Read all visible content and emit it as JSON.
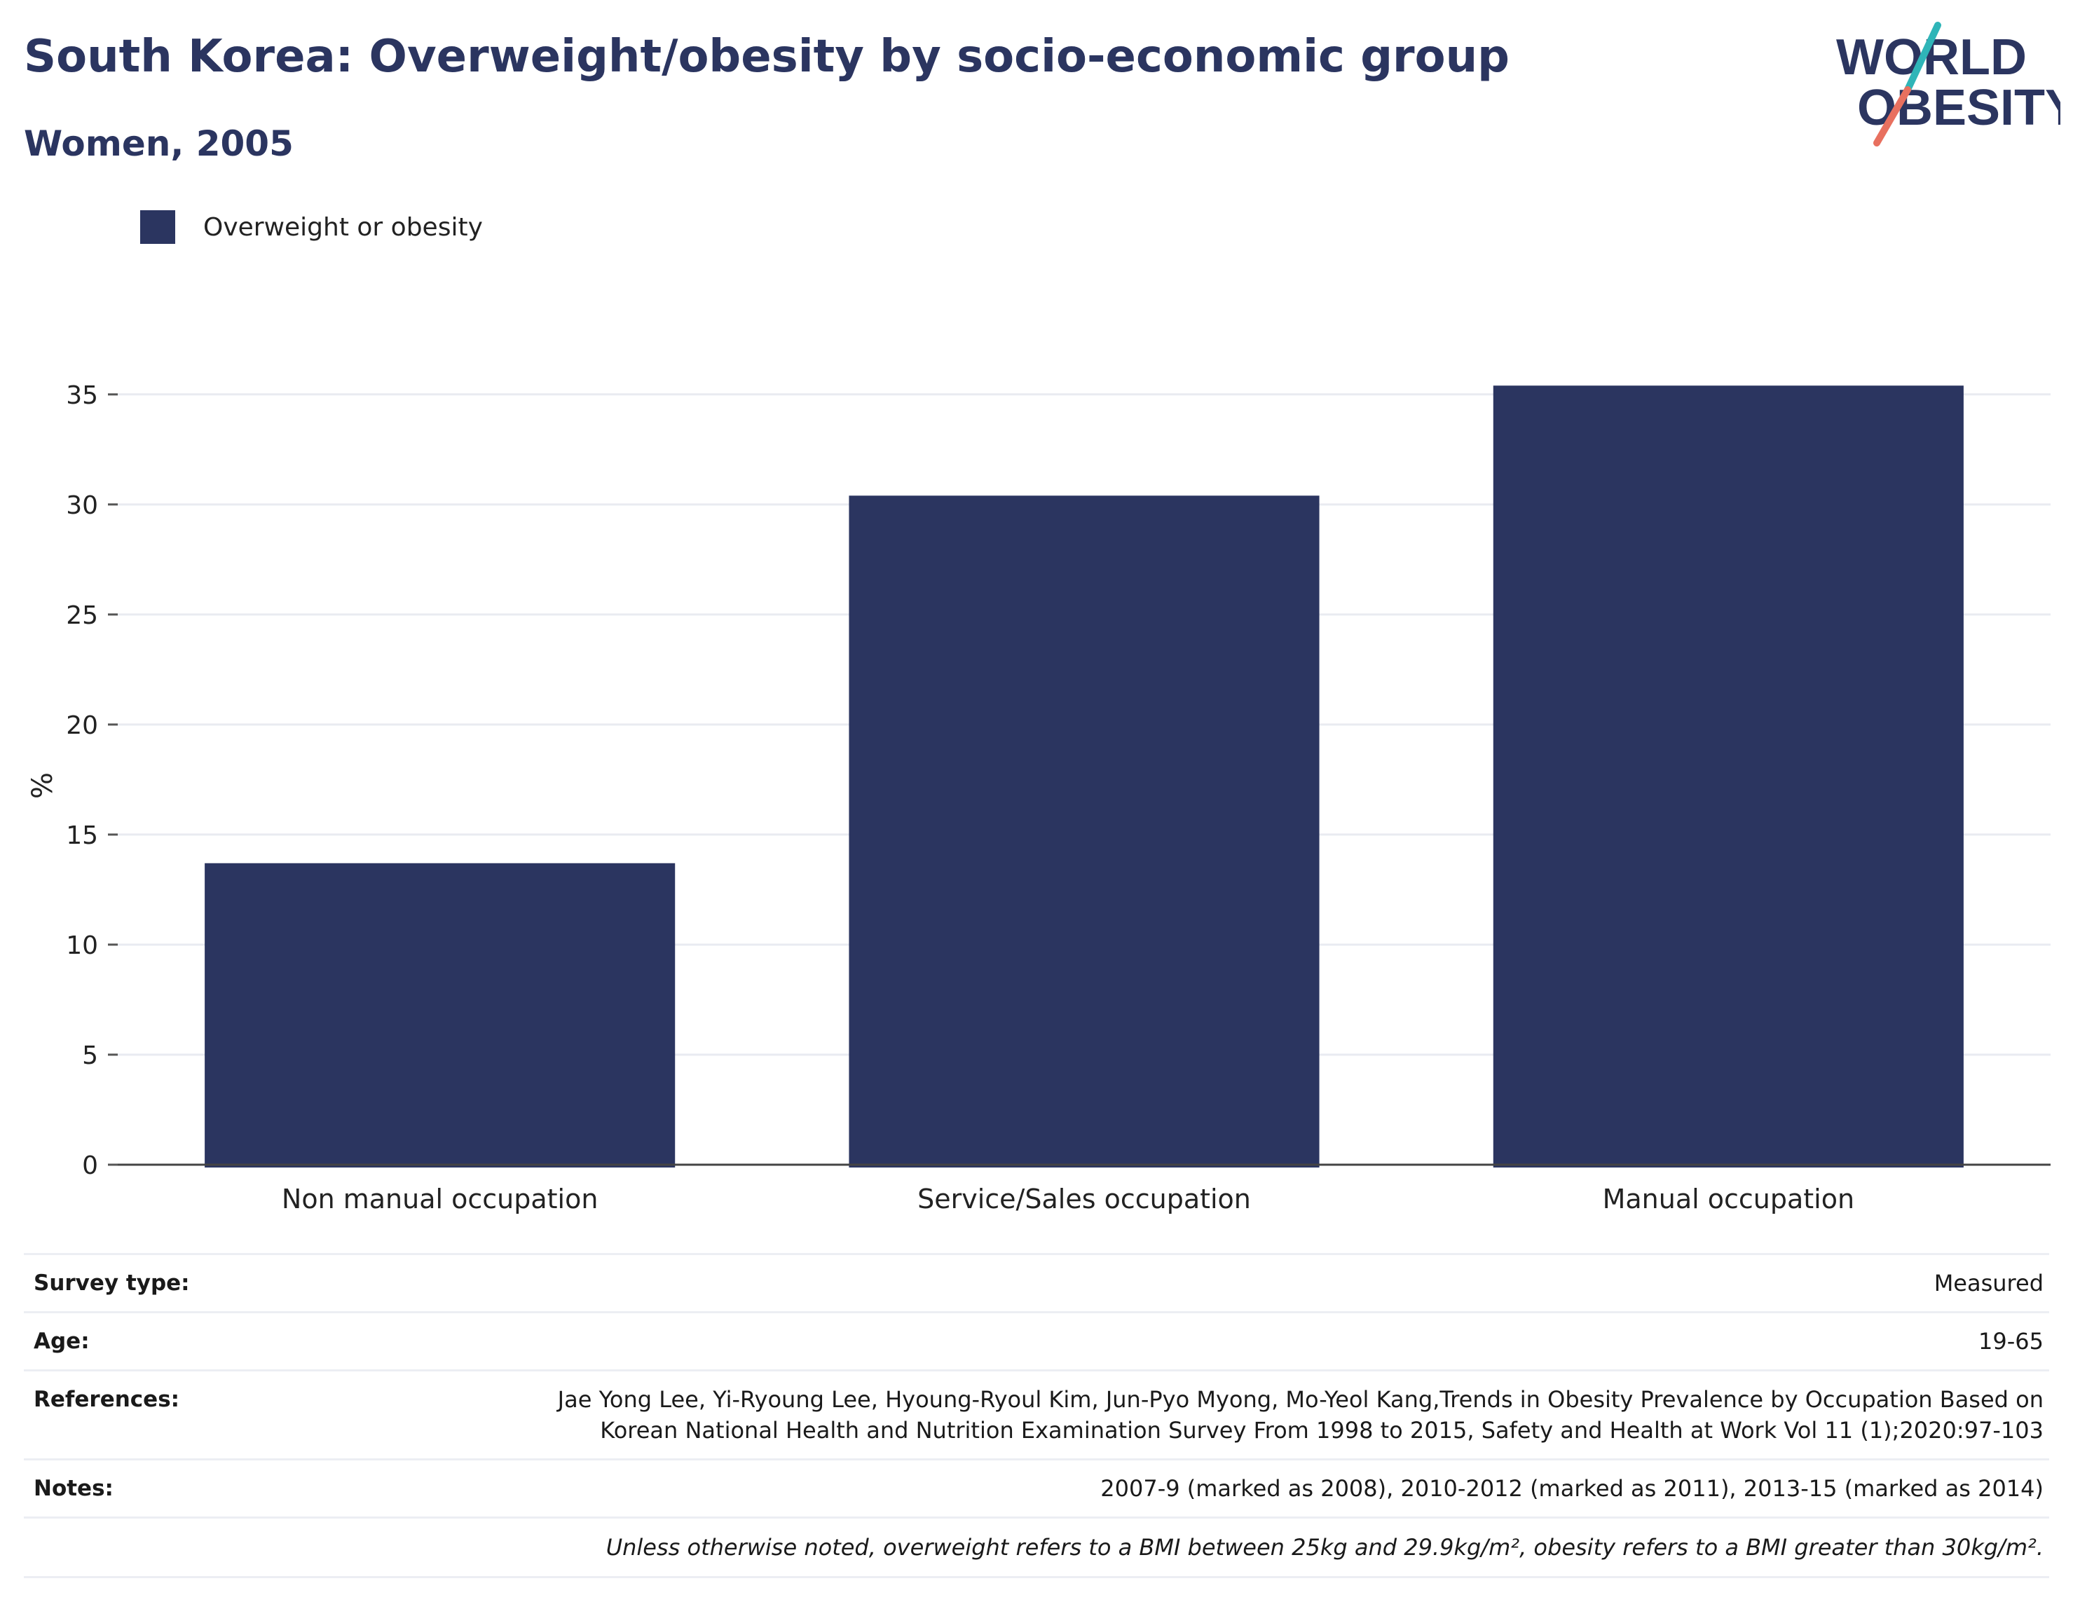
{
  "header": {
    "title": "South Korea: Overweight/obesity by socio-economic group",
    "subtitle": "Women, 2005"
  },
  "logo": {
    "line1": "WORLD",
    "line2": "OBESITY",
    "colors": {
      "text": "#2b3560",
      "slash_top": "#2fb5b8",
      "slash_bottom": "#e8705f"
    }
  },
  "legend": {
    "label": "Overweight or obesity",
    "color": "#2b3560"
  },
  "chart_data": {
    "type": "bar",
    "categories": [
      "Non manual occupation",
      "Service/Sales occupation",
      "Manual occupation"
    ],
    "series": [
      {
        "name": "Overweight or obesity",
        "values": [
          13.7,
          30.4,
          35.4
        ],
        "color": "#2b3560"
      }
    ],
    "title": "South Korea: Overweight/obesity by socio-economic group",
    "subtitle": "Women, 2005",
    "xlabel": "",
    "ylabel": "%",
    "ylim": [
      0,
      37
    ],
    "yticks": [
      0,
      5,
      10,
      15,
      20,
      25,
      30,
      35
    ],
    "grid": true,
    "legend_position": "top-left"
  },
  "info": {
    "survey_type": {
      "label": "Survey type:",
      "value": "Measured"
    },
    "age": {
      "label": "Age:",
      "value": "19-65"
    },
    "references": {
      "label": "References:",
      "line1": "Jae Yong Lee, Yi-Ryoung Lee, Hyoung-Ryoul Kim, Jun-Pyo Myong, Mo-Yeol Kang,Trends in Obesity Prevalence by Occupation Based on",
      "line2": "Korean National Health and Nutrition Examination Survey From 1998 to 2015, Safety and Health at Work Vol 11 (1);2020:97-103"
    },
    "notes": {
      "label": "Notes:",
      "value": "2007-9 (marked as 2008), 2010-2012 (marked as 2011), 2013-15 (marked as 2014)"
    },
    "footnote": "Unless otherwise noted, overweight refers to a BMI between 25kg and 29.9kg/m², obesity refers to a BMI greater than 30kg/m²."
  }
}
